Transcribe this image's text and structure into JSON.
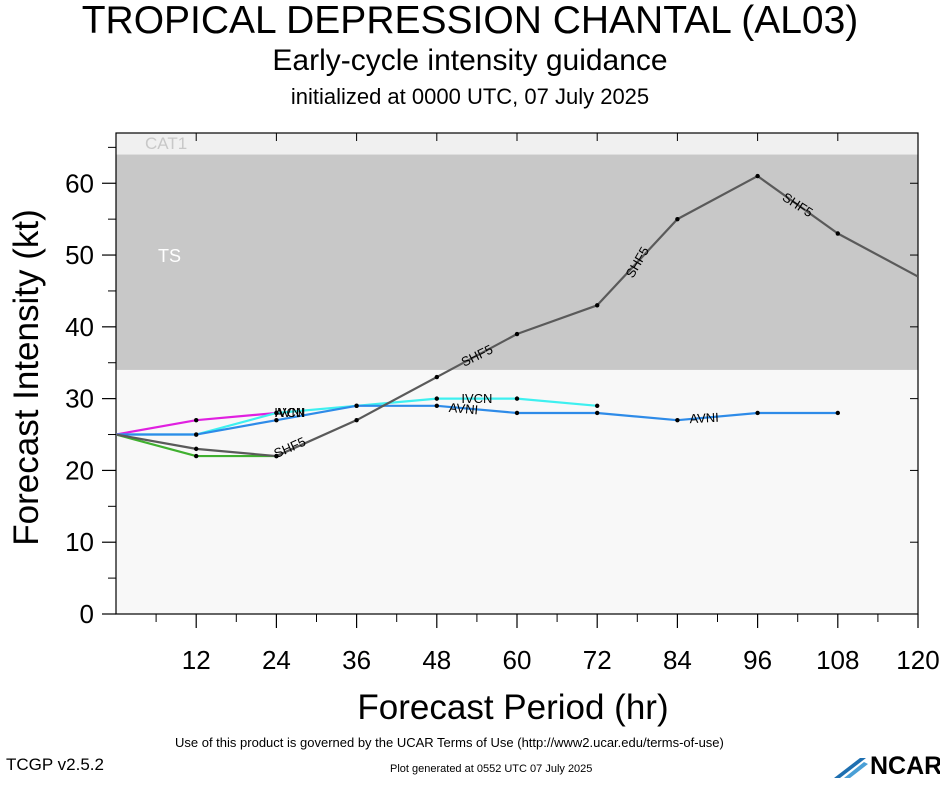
{
  "header": {
    "title": "TROPICAL DEPRESSION CHANTAL (AL03)",
    "subtitle": "Early-cycle intensity guidance",
    "init": "initialized at 0000 UTC, 07 July 2025"
  },
  "footer": {
    "terms": "Use of this product is governed by the UCAR Terms of Use (http://www2.ucar.edu/terms-of-use)",
    "version": "TCGP v2.5.2",
    "generated": "Plot generated at 0552 UTC   07 July 2025",
    "logo": "NCAR"
  },
  "chart_data": {
    "type": "line",
    "xlabel": "Forecast Period (hr)",
    "ylabel": "Forecast Intensity (kt)",
    "xlim": [
      0,
      120
    ],
    "ylim": [
      0,
      67
    ],
    "xticks": [
      "12",
      "24",
      "36",
      "48",
      "60",
      "72",
      "84",
      "96",
      "108",
      "120"
    ],
    "yticks": [
      "0",
      "10",
      "20",
      "30",
      "40",
      "50",
      "60"
    ],
    "bands": [
      {
        "label": "TS",
        "from": 34,
        "to": 64,
        "color": "#c8c8c8",
        "label_color": "#ffffff"
      },
      {
        "label": "CAT1",
        "from": 64,
        "to": 67,
        "color": "#f0f0f0",
        "label_color": "#c8c8c8"
      }
    ],
    "series": [
      {
        "name": "SHF5",
        "color": "#5a5a5a",
        "x": [
          0,
          12,
          24,
          36,
          48,
          60,
          72,
          84,
          96,
          108,
          120
        ],
        "y": [
          25,
          23,
          22,
          27,
          33,
          39,
          43,
          55,
          61,
          53,
          47
        ]
      },
      {
        "name": "AVNI",
        "color": "#2e8be8",
        "x": [
          0,
          12,
          24,
          36,
          48,
          60,
          72,
          84,
          96,
          108
        ],
        "y": [
          25,
          25,
          27,
          29,
          29,
          28,
          28,
          27,
          28,
          28
        ]
      },
      {
        "name": "IVCN",
        "color": "#3ef0f0",
        "x": [
          0,
          12,
          24,
          36,
          48,
          60,
          72
        ],
        "y": [
          25,
          25,
          28,
          29,
          30,
          30,
          29
        ]
      },
      {
        "name": "",
        "color": "#e020e0",
        "x": [
          0,
          12,
          24
        ],
        "y": [
          25,
          27,
          28
        ]
      },
      {
        "name": "",
        "color": "#40b030",
        "x": [
          0,
          12,
          24
        ],
        "y": [
          25,
          22,
          22
        ]
      }
    ],
    "line_labels": [
      {
        "series": "SHF5",
        "text": "SHF5",
        "x": 26,
        "y": 23.2,
        "angle": -24
      },
      {
        "series": "SHF5",
        "text": "SHF5",
        "x": 54,
        "y": 36.0,
        "angle": -26
      },
      {
        "series": "SHF5",
        "text": "SHF5",
        "x": 78,
        "y": 49.0,
        "angle": -60
      },
      {
        "series": "SHF5",
        "text": "SHF5",
        "x": 102,
        "y": 57.0,
        "angle": 33
      },
      {
        "series": "AVNI",
        "text": "AVNI",
        "x": 52,
        "y": 28.6,
        "angle": 5
      },
      {
        "series": "AVNI",
        "text": "AVNI",
        "x": 88,
        "y": 27.3,
        "angle": -3
      },
      {
        "series": "IVCN",
        "text": "IVCN",
        "x": 54,
        "y": 30.0,
        "angle": 0
      },
      {
        "series": "IVCN",
        "text": "IVCN",
        "x": 26,
        "y": 28.1,
        "angle": 0
      },
      {
        "series": "AVNI",
        "text": "AVNI",
        "x": 26,
        "y": 28.1,
        "angle": 0
      }
    ]
  }
}
